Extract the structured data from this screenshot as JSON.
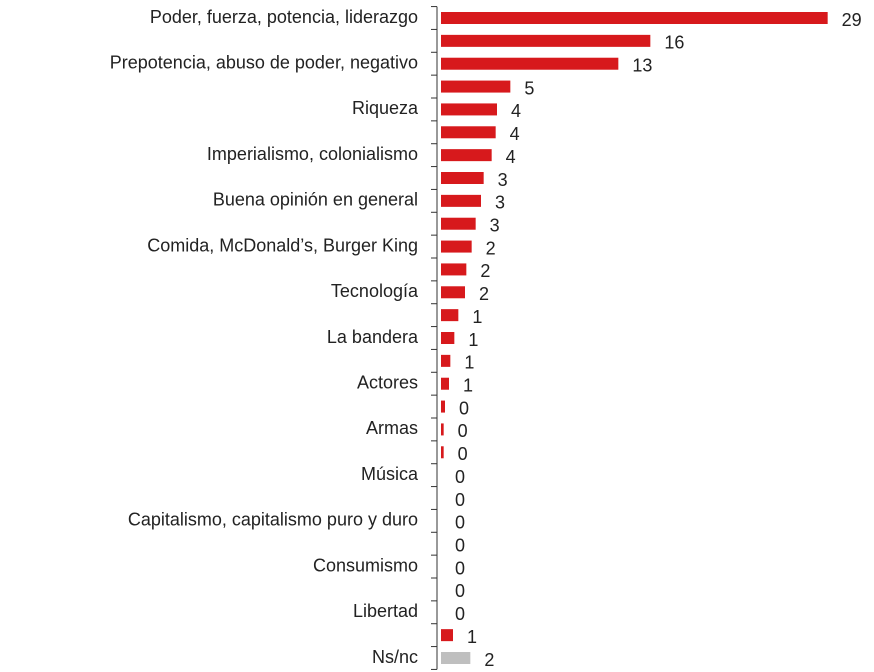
{
  "chart_data": {
    "type": "hbar",
    "categories": [
      "Poder, fuerza, potencia, liderazgo",
      null,
      "Prepotencia, abuso de poder, negativo",
      null,
      "Riqueza",
      null,
      "Imperialismo, colonialismo",
      null,
      "Buena opinión en general",
      null,
      "Comida, McDonald’s, Burger King",
      null,
      "Tecnología",
      null,
      "La bandera",
      null,
      "Actores",
      null,
      "Armas",
      null,
      "Música",
      null,
      "Capitalismo, capitalismo puro y duro",
      null,
      "Consumismo",
      null,
      "Libertad",
      null,
      "Ns/nc"
    ],
    "values": [
      29,
      15.7,
      13.3,
      5.2,
      4.2,
      4.1,
      3.8,
      3.2,
      3.0,
      2.6,
      2.3,
      1.9,
      1.8,
      1.3,
      1.0,
      0.7,
      0.6,
      0.3,
      0.2,
      0.2,
      0,
      0,
      0,
      0,
      0,
      0,
      0,
      0.9,
      2.2
    ],
    "value_labels": [
      "29",
      "16",
      "13",
      "5",
      "4",
      "4",
      "4",
      "3",
      "3",
      "3",
      "2",
      "2",
      "2",
      "1",
      "1",
      "1",
      "1",
      "0",
      "0",
      "0",
      "0",
      "0",
      "0",
      "0",
      "0",
      "0",
      "0",
      "1",
      "2"
    ],
    "colors": [
      "#d7191c",
      "#d7191c",
      "#d7191c",
      "#d7191c",
      "#d7191c",
      "#d7191c",
      "#d7191c",
      "#d7191c",
      "#d7191c",
      "#d7191c",
      "#d7191c",
      "#d7191c",
      "#d7191c",
      "#d7191c",
      "#d7191c",
      "#d7191c",
      "#d7191c",
      "#d7191c",
      "#d7191c",
      "#d7191c",
      "#d7191c",
      "#d7191c",
      "#d7191c",
      "#d7191c",
      "#d7191c",
      "#d7191c",
      "#d7191c",
      "#d7191c",
      "#bfbfbf"
    ],
    "xlim": [
      0,
      30
    ]
  }
}
